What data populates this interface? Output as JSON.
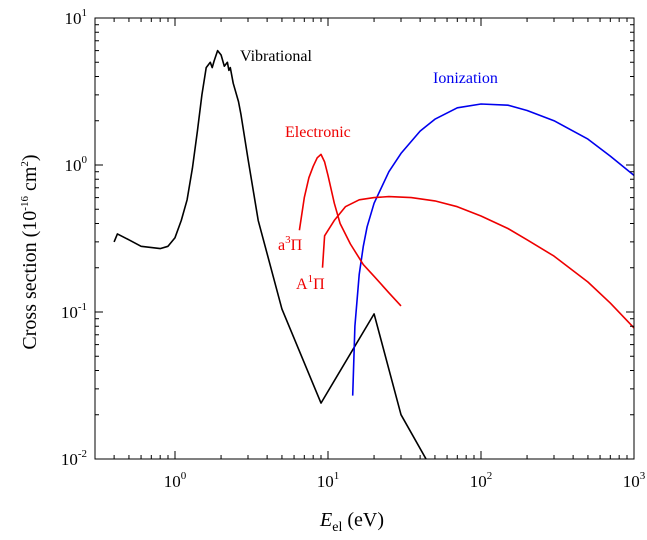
{
  "chart_data": {
    "type": "line",
    "xscale": "log",
    "yscale": "log",
    "xlim": [
      0.3,
      1000
    ],
    "ylim": [
      0.01,
      10
    ],
    "xlabel": {
      "main": "E",
      "sub": "el",
      "rest": " (eV)"
    },
    "ylabel": {
      "pre": "Cross section (10",
      "sup1": "-16",
      "mid": " cm",
      "sup2": "2",
      "post": ")"
    },
    "x_ticks": [
      {
        "base": "10",
        "exp": "0",
        "value": 1
      },
      {
        "base": "10",
        "exp": "1",
        "value": 10
      },
      {
        "base": "10",
        "exp": "2",
        "value": 100
      },
      {
        "base": "10",
        "exp": "3",
        "value": 1000
      }
    ],
    "y_ticks": [
      {
        "base": "10",
        "exp": "-2",
        "value": 0.01
      },
      {
        "base": "10",
        "exp": "-1",
        "value": 0.1
      },
      {
        "base": "10",
        "exp": "0",
        "value": 1
      },
      {
        "base": "10",
        "exp": "1",
        "value": 10
      }
    ],
    "grid": false,
    "legend": "none",
    "series": [
      {
        "name": "Vibrational",
        "color": "#000000",
        "points": [
          [
            0.4,
            0.3
          ],
          [
            0.42,
            0.34
          ],
          [
            0.5,
            0.31
          ],
          [
            0.6,
            0.28
          ],
          [
            0.8,
            0.27
          ],
          [
            0.9,
            0.28
          ],
          [
            1.0,
            0.32
          ],
          [
            1.1,
            0.42
          ],
          [
            1.2,
            0.58
          ],
          [
            1.3,
            0.95
          ],
          [
            1.4,
            1.7
          ],
          [
            1.5,
            3.0
          ],
          [
            1.6,
            4.6
          ],
          [
            1.7,
            5.0
          ],
          [
            1.75,
            4.6
          ],
          [
            1.8,
            5.1
          ],
          [
            1.9,
            6.0
          ],
          [
            2.0,
            5.6
          ],
          [
            2.1,
            4.7
          ],
          [
            2.2,
            5.0
          ],
          [
            2.25,
            4.4
          ],
          [
            2.3,
            4.6
          ],
          [
            2.4,
            3.6
          ],
          [
            2.6,
            2.7
          ],
          [
            2.7,
            2.2
          ],
          [
            3.0,
            1.1
          ],
          [
            3.5,
            0.42
          ],
          [
            5.0,
            0.105
          ],
          [
            9.0,
            0.024
          ],
          [
            20.0,
            0.097
          ],
          [
            30.0,
            0.02
          ],
          [
            45.0,
            0.0095
          ]
        ]
      },
      {
        "name": "Ionization",
        "color": "#0000ee",
        "points": [
          [
            14.5,
            0.027
          ],
          [
            15.0,
            0.08
          ],
          [
            16.0,
            0.18
          ],
          [
            17.0,
            0.28
          ],
          [
            18.0,
            0.38
          ],
          [
            20.0,
            0.55
          ],
          [
            25.0,
            0.9
          ],
          [
            30.0,
            1.2
          ],
          [
            40.0,
            1.7
          ],
          [
            50.0,
            2.05
          ],
          [
            70.0,
            2.45
          ],
          [
            100.0,
            2.6
          ],
          [
            150.0,
            2.55
          ],
          [
            200.0,
            2.35
          ],
          [
            300.0,
            2.0
          ],
          [
            500.0,
            1.5
          ],
          [
            700.0,
            1.15
          ],
          [
            1000.0,
            0.85
          ]
        ]
      },
      {
        "name": "Electronic a³Π",
        "color": "#ee0000",
        "points": [
          [
            6.5,
            0.36
          ],
          [
            7.0,
            0.6
          ],
          [
            7.5,
            0.82
          ],
          [
            8.0,
            0.98
          ],
          [
            8.5,
            1.12
          ],
          [
            9.0,
            1.18
          ],
          [
            9.5,
            1.05
          ],
          [
            10.0,
            0.85
          ],
          [
            11.0,
            0.55
          ],
          [
            12.0,
            0.4
          ],
          [
            14.0,
            0.29
          ],
          [
            17.0,
            0.21
          ],
          [
            20.0,
            0.175
          ],
          [
            25.0,
            0.135
          ],
          [
            30.0,
            0.11
          ]
        ]
      },
      {
        "name": "Electronic A¹Π",
        "color": "#ee0000",
        "points": [
          [
            9.2,
            0.2
          ],
          [
            9.5,
            0.33
          ],
          [
            11.0,
            0.42
          ],
          [
            13.0,
            0.52
          ],
          [
            16.0,
            0.58
          ],
          [
            20.0,
            0.6
          ],
          [
            25.0,
            0.61
          ],
          [
            35.0,
            0.6
          ],
          [
            50.0,
            0.57
          ],
          [
            70.0,
            0.52
          ],
          [
            100.0,
            0.45
          ],
          [
            150.0,
            0.37
          ],
          [
            200.0,
            0.31
          ],
          [
            300.0,
            0.24
          ],
          [
            500.0,
            0.16
          ],
          [
            700.0,
            0.115
          ],
          [
            1000.0,
            0.078
          ]
        ]
      }
    ],
    "annotations": {
      "vibrational": "Vibrational",
      "ionization": "Ionization",
      "electronic": "Electronic",
      "a3pi": {
        "letter": "a",
        "sup": "3",
        "greek": "Π"
      },
      "A1pi": {
        "letter": "A",
        "sup": "1",
        "greek": "Π"
      }
    },
    "colors": {
      "vibrational": "#000000",
      "ionization": "#0000ee",
      "electronic": "#ee0000"
    }
  }
}
